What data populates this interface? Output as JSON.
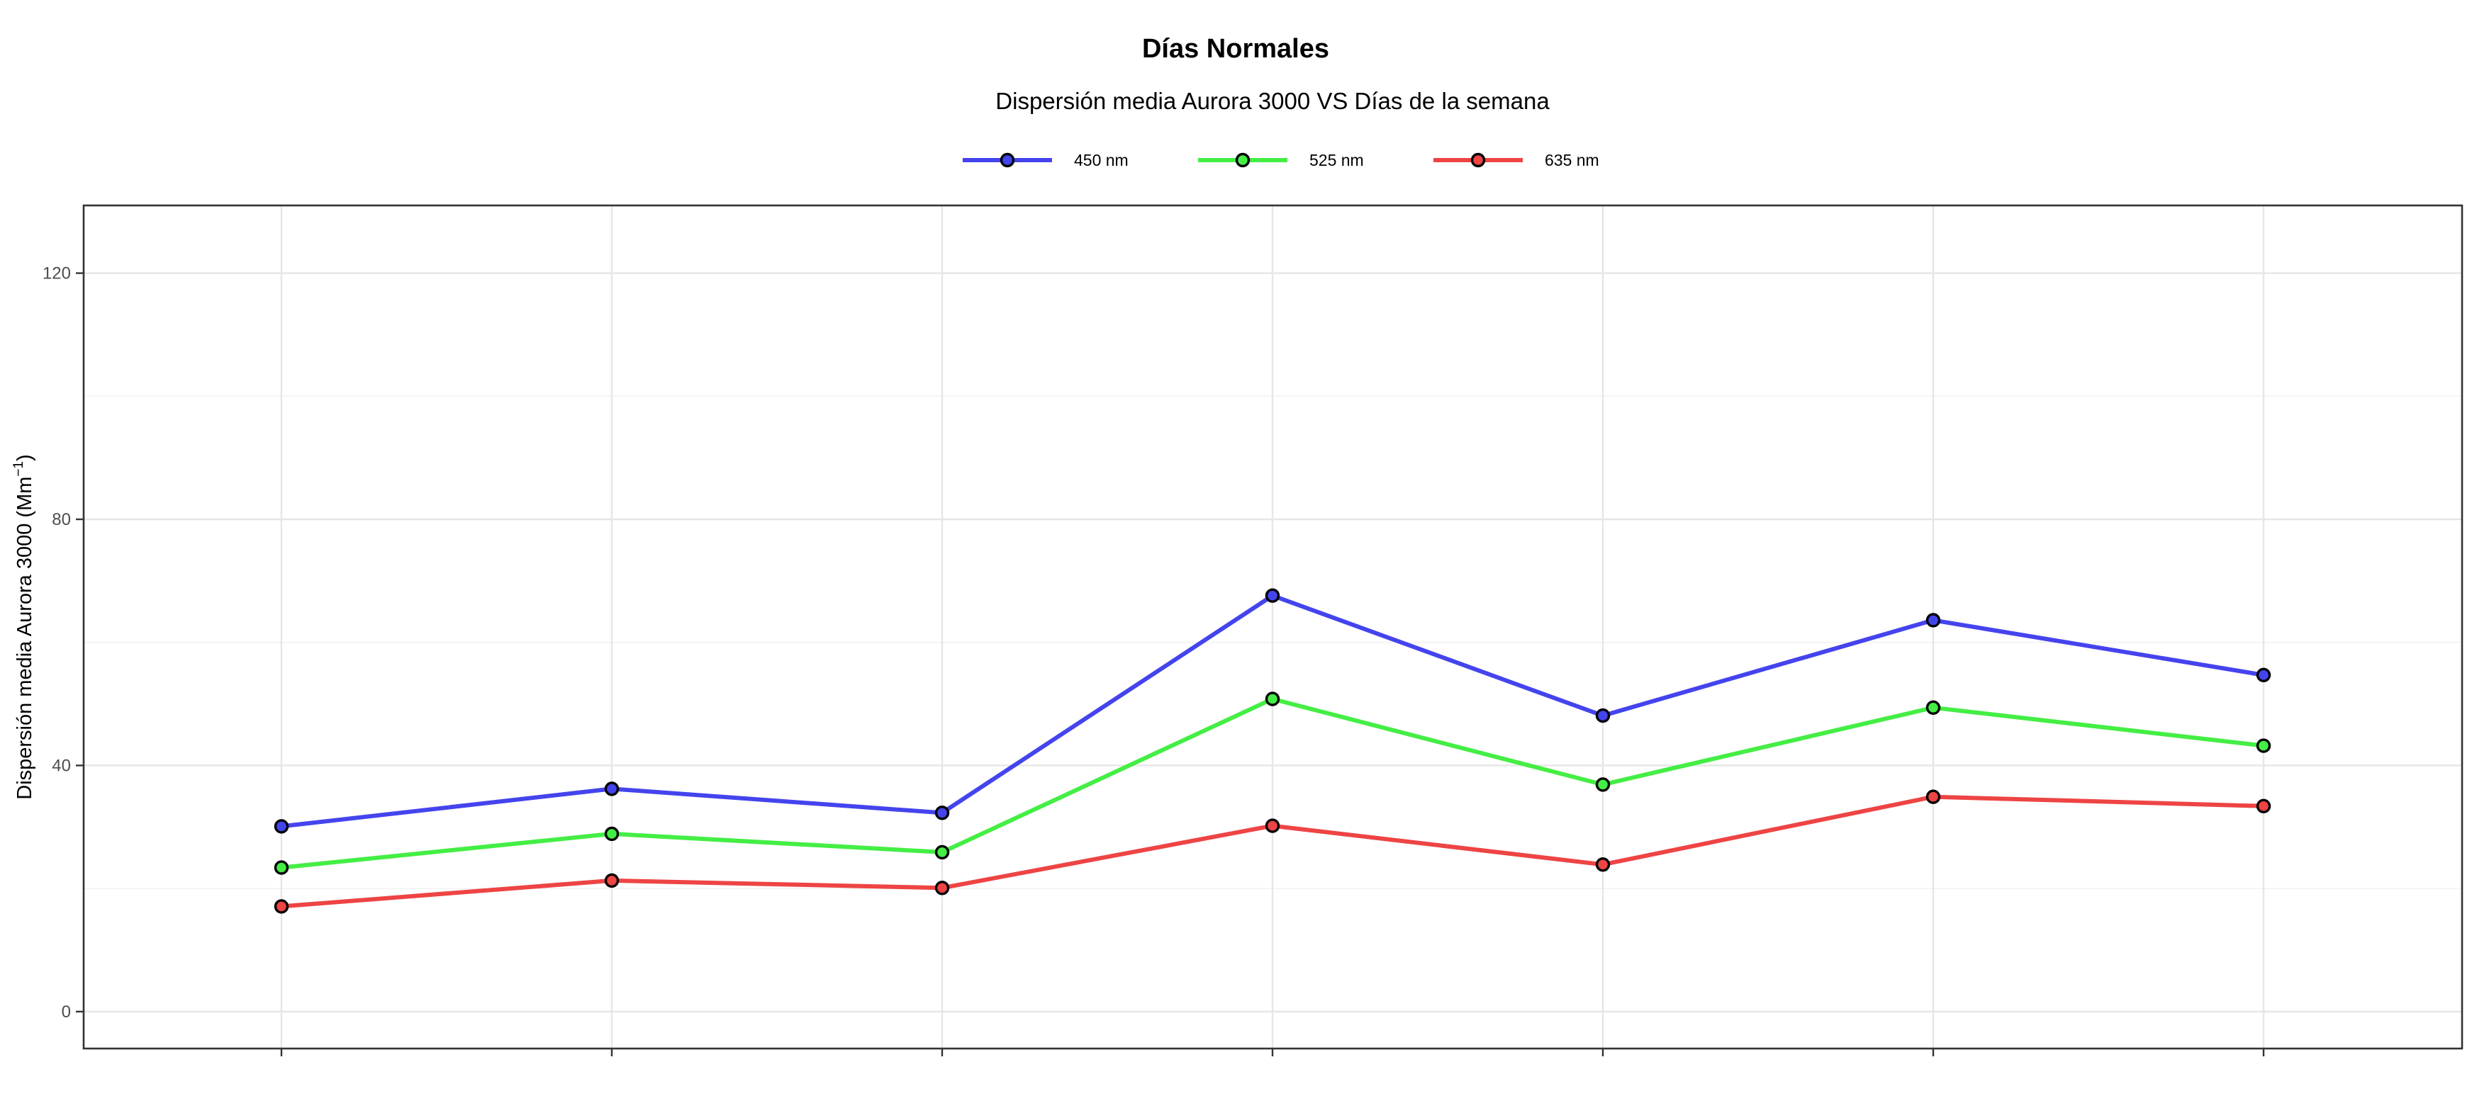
{
  "chart_data": {
    "type": "line",
    "title": "Días Normales",
    "subtitle": "Dispersión media Aurora 3000 VS Días de la semana",
    "xlabel": "",
    "ylabel": "Dispersión media Aurora 3000 (Mm",
    "ylabel_superscript": "−1",
    "ylabel_suffix": ")",
    "x": [
      1,
      2,
      3,
      4,
      5,
      6,
      7
    ],
    "x_tick_labels": [],
    "ylim": [
      -6,
      131
    ],
    "y_ticks": [
      0,
      40,
      80,
      120
    ],
    "y_tick_labels": [
      "0",
      "40",
      "80",
      "120"
    ],
    "grid": true,
    "legend_position": "top",
    "series": [
      {
        "name": "450 nm",
        "color": "#4444ee",
        "values": [
          30.1,
          36.2,
          32.3,
          67.6,
          48.1,
          63.6,
          54.7
        ]
      },
      {
        "name": "525 nm",
        "color": "#44ee44",
        "values": [
          23.4,
          28.9,
          25.9,
          50.8,
          36.9,
          49.4,
          43.2
        ]
      },
      {
        "name": "635 nm",
        "color": "#ee4444",
        "values": [
          17.1,
          21.3,
          20.1,
          30.2,
          23.9,
          34.9,
          33.4
        ]
      }
    ]
  }
}
